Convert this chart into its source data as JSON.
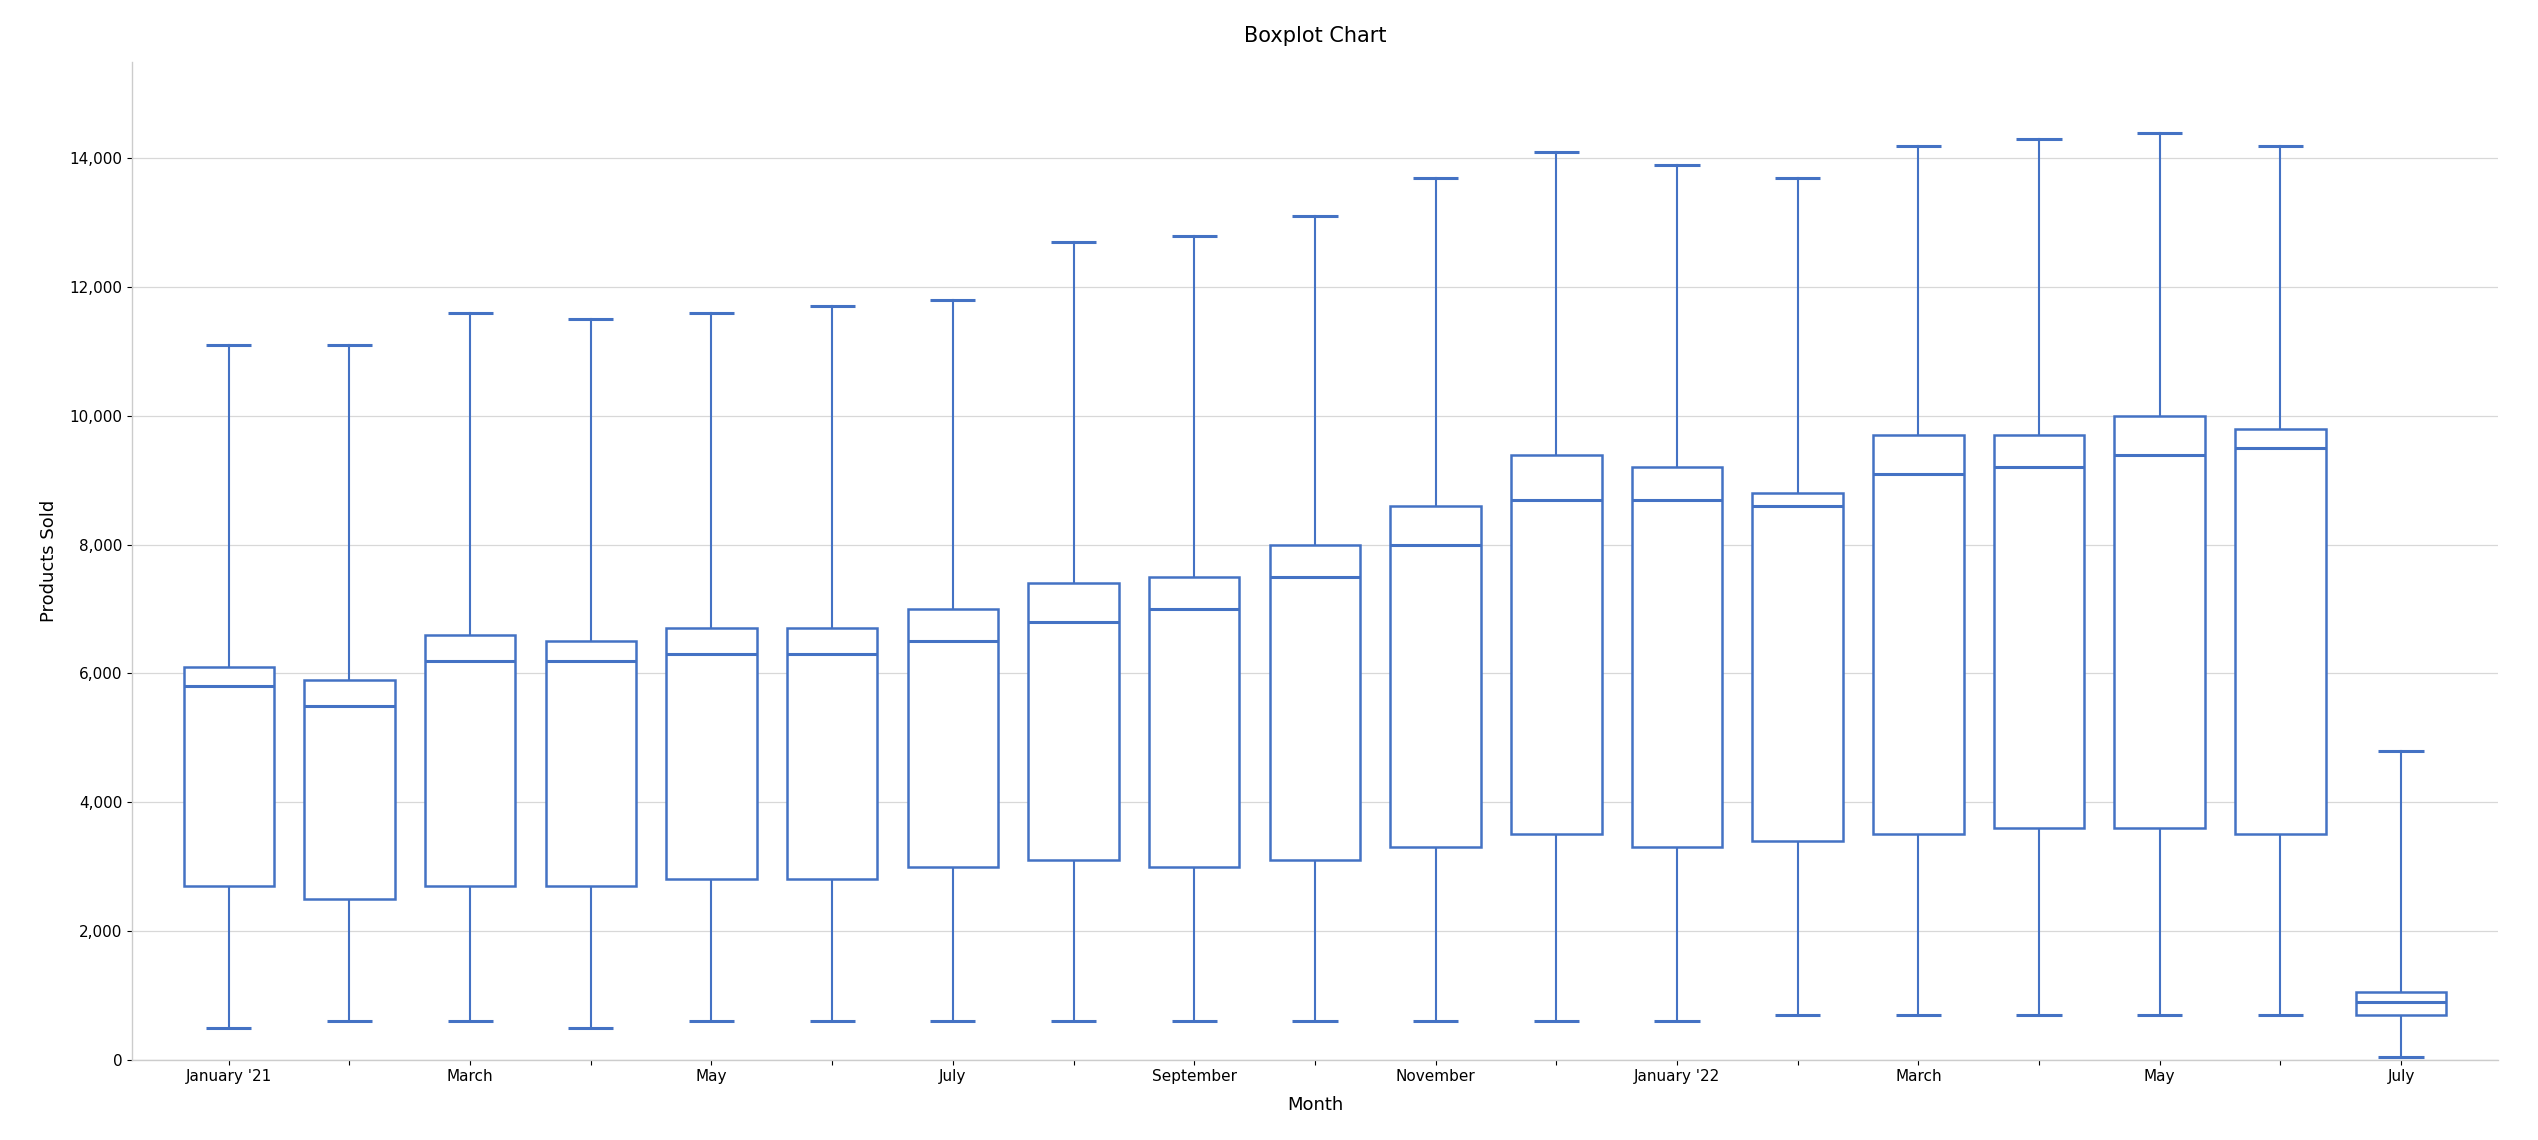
{
  "title": "Boxplot Chart",
  "xlabel": "Month",
  "ylabel": "Products Sold",
  "background_color": "#ffffff",
  "box_color": "#4472c4",
  "fig_bg_color": "#ffffff",
  "border_color": "#aaaaaa",
  "x_tick_labels": [
    "January '21",
    "",
    "March",
    "",
    "May",
    "",
    "July",
    "",
    "September",
    "",
    "November",
    "",
    "January '22",
    "",
    "March",
    "",
    "May",
    "",
    "July"
  ],
  "boxes": [
    {
      "whislo": 500,
      "q1": 2700,
      "med": 5800,
      "q3": 6100,
      "whishi": 11100
    },
    {
      "whislo": 600,
      "q1": 2500,
      "med": 5500,
      "q3": 5900,
      "whishi": 11100
    },
    {
      "whislo": 600,
      "q1": 2700,
      "med": 6200,
      "q3": 6600,
      "whishi": 11600
    },
    {
      "whislo": 500,
      "q1": 2700,
      "med": 6200,
      "q3": 6500,
      "whishi": 11500
    },
    {
      "whislo": 600,
      "q1": 2800,
      "med": 6300,
      "q3": 6700,
      "whishi": 11600
    },
    {
      "whislo": 600,
      "q1": 2800,
      "med": 6300,
      "q3": 6700,
      "whishi": 11700
    },
    {
      "whislo": 600,
      "q1": 3000,
      "med": 6500,
      "q3": 7000,
      "whishi": 11800
    },
    {
      "whislo": 600,
      "q1": 3100,
      "med": 6800,
      "q3": 7400,
      "whishi": 12700
    },
    {
      "whislo": 600,
      "q1": 3000,
      "med": 7000,
      "q3": 7500,
      "whishi": 12800
    },
    {
      "whislo": 600,
      "q1": 3100,
      "med": 7500,
      "q3": 8000,
      "whishi": 13100
    },
    {
      "whislo": 600,
      "q1": 3300,
      "med": 8000,
      "q3": 8600,
      "whishi": 13700
    },
    {
      "whislo": 600,
      "q1": 3500,
      "med": 8700,
      "q3": 9400,
      "whishi": 14100
    },
    {
      "whislo": 600,
      "q1": 3300,
      "med": 8700,
      "q3": 9200,
      "whishi": 13900
    },
    {
      "whislo": 700,
      "q1": 3400,
      "med": 8600,
      "q3": 8800,
      "whishi": 13700
    },
    {
      "whislo": 700,
      "q1": 3500,
      "med": 9100,
      "q3": 9700,
      "whishi": 14200
    },
    {
      "whislo": 700,
      "q1": 3600,
      "med": 9200,
      "q3": 9700,
      "whishi": 14300
    },
    {
      "whislo": 700,
      "q1": 3600,
      "med": 9400,
      "q3": 10000,
      "whishi": 14400
    },
    {
      "whislo": 700,
      "q1": 3500,
      "med": 9500,
      "q3": 9800,
      "whishi": 14200
    },
    {
      "whislo": 50,
      "q1": 700,
      "med": 900,
      "q3": 1050,
      "whishi": 4800
    }
  ],
  "ylim": [
    0,
    15500
  ],
  "yticks": [
    0,
    2000,
    4000,
    6000,
    8000,
    10000,
    12000,
    14000
  ]
}
